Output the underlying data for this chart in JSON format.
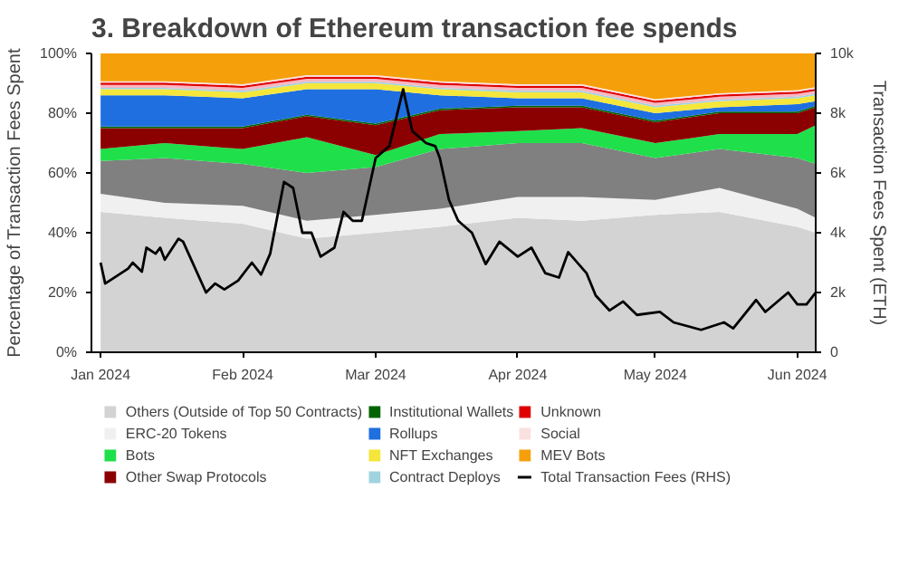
{
  "chart_data": {
    "type": "area",
    "stacked": true,
    "title": "3. Breakdown of Ethereum transaction fee spends",
    "ylabel": "Percentage of Transaction Fees Spent",
    "y2label": "Transaction Fees Spent (ETH)",
    "legend": "bottom",
    "x": [
      "2024-01-01",
      "2024-01-15",
      "2024-02-01",
      "2024-02-15",
      "2024-03-01",
      "2024-03-15",
      "2024-04-01",
      "2024-04-15",
      "2024-05-01",
      "2024-05-15",
      "2024-06-01",
      "2024-06-05"
    ],
    "xlim": [
      "2023-12-30",
      "2024-06-05"
    ],
    "xticks": [
      {
        "value": "2024-01-01",
        "label": "Jan 2024"
      },
      {
        "value": "2024-02-01",
        "label": "Feb 2024"
      },
      {
        "value": "2024-03-01",
        "label": "Mar 2024"
      },
      {
        "value": "2024-04-01",
        "label": "Apr 2024"
      },
      {
        "value": "2024-05-01",
        "label": "May 2024"
      },
      {
        "value": "2024-06-01",
        "label": "Jun 2024"
      }
    ],
    "ylim": [
      0,
      100
    ],
    "yticks": [
      {
        "value": 0,
        "label": "0%"
      },
      {
        "value": 20,
        "label": "20%"
      },
      {
        "value": 40,
        "label": "40%"
      },
      {
        "value": 60,
        "label": "60%"
      },
      {
        "value": 80,
        "label": "80%"
      },
      {
        "value": 100,
        "label": "100%"
      }
    ],
    "y2lim": [
      0,
      10000
    ],
    "y2ticks": [
      0,
      {
        "value": 2000,
        "label": "2k"
      },
      {
        "value": 4000,
        "label": "4k"
      },
      {
        "value": 6000,
        "label": "6k"
      },
      {
        "value": 8000,
        "label": "8k"
      },
      {
        "value": 10000,
        "label": "10k"
      }
    ],
    "series": [
      {
        "name": "Others (Outside of Top 50 Contracts)",
        "color": "#d3d3d3",
        "values": [
          47,
          45,
          43,
          38,
          40,
          42,
          45,
          44,
          46,
          47,
          42,
          40
        ]
      },
      {
        "name": "ERC-20 Tokens",
        "color": "#f0f0f0",
        "values": [
          6,
          5,
          6,
          6,
          6,
          6,
          7,
          8,
          5,
          8,
          6,
          5
        ]
      },
      {
        "color": "#808080",
        "values": [
          11,
          15,
          14,
          16,
          16,
          20,
          18,
          18,
          14,
          13,
          17,
          18
        ]
      },
      {
        "name": "Bots",
        "color": "#1fe04a",
        "values": [
          4,
          5,
          5,
          12,
          4,
          5,
          4,
          5,
          5,
          5,
          8,
          13
        ]
      },
      {
        "name": "Other Swap Protocols",
        "color": "#8b0000",
        "values": [
          7,
          5,
          7,
          7,
          10,
          8,
          8,
          7,
          7,
          7,
          7,
          6
        ]
      },
      {
        "name": "Institutional Wallets",
        "color": "#006400",
        "values": [
          0.5,
          0.5,
          0.5,
          0.5,
          0.5,
          0.5,
          0.5,
          0.5,
          0.5,
          0.5,
          0.5,
          0.5
        ]
      },
      {
        "name": "Rollups",
        "color": "#1f6fe0",
        "values": [
          10.5,
          10.5,
          9.5,
          8.5,
          11.5,
          4.5,
          2.5,
          2.5,
          2.5,
          1.5,
          2.5,
          1.5
        ]
      },
      {
        "name": "NFT Exchanges",
        "color": "#f5e63b",
        "values": [
          2,
          2,
          2,
          2,
          2,
          2,
          2,
          2,
          2,
          2,
          2,
          2
        ]
      },
      {
        "name": "Contract Deploys",
        "color": "#9fd3e0",
        "values": [
          0.5,
          0.5,
          0.5,
          0.5,
          0.5,
          0.5,
          0.5,
          0.5,
          0.5,
          0.5,
          0.5,
          0.5
        ]
      },
      {
        "color": "#f7b6c2",
        "values": [
          1,
          1,
          1,
          1,
          1,
          1,
          1,
          1,
          1,
          1,
          1,
          1
        ]
      },
      {
        "name": "Unknown",
        "color": "#e00000",
        "values": [
          0.7,
          0.7,
          0.7,
          0.7,
          0.7,
          0.7,
          0.7,
          0.7,
          0.7,
          0.7,
          0.7,
          0.7
        ]
      },
      {
        "name": "Social",
        "color": "#fbe0e0",
        "values": [
          0.5,
          0.5,
          0.5,
          0.5,
          0.5,
          0.5,
          0.5,
          0.5,
          0.5,
          0.5,
          0.5,
          0.5
        ]
      },
      {
        "name": "MEV Bots",
        "color": "#f5a00a",
        "values": [
          9.3,
          9.3,
          10.3,
          7.3,
          7.3,
          9.3,
          10.3,
          10.3,
          15.3,
          13.3,
          12.3,
          11.3
        ]
      },
      {
        "name": "Total Transaction Fees (RHS)",
        "type": "line",
        "axis": "y2",
        "color": "#000000",
        "x": [
          "2024-01-01",
          "2024-01-02",
          "2024-01-07",
          "2024-01-08",
          "2024-01-10",
          "2024-01-11",
          "2024-01-13",
          "2024-01-14",
          "2024-01-15",
          "2024-01-18",
          "2024-01-19",
          "2024-01-24",
          "2024-01-26",
          "2024-01-28",
          "2024-01-31",
          "2024-02-03",
          "2024-02-05",
          "2024-02-07",
          "2024-02-10",
          "2024-02-12",
          "2024-02-14",
          "2024-02-16",
          "2024-02-18",
          "2024-02-21",
          "2024-02-23",
          "2024-02-25",
          "2024-02-27",
          "2024-03-01",
          "2024-03-04",
          "2024-03-07",
          "2024-03-09",
          "2024-03-12",
          "2024-03-14",
          "2024-03-15",
          "2024-03-17",
          "2024-03-19",
          "2024-03-22",
          "2024-03-25",
          "2024-03-28",
          "2024-04-01",
          "2024-04-04",
          "2024-04-07",
          "2024-04-10",
          "2024-04-12",
          "2024-04-16",
          "2024-04-18",
          "2024-04-21",
          "2024-04-24",
          "2024-04-27",
          "2024-05-02",
          "2024-05-05",
          "2024-05-11",
          "2024-05-16",
          "2024-05-18",
          "2024-05-23",
          "2024-05-25",
          "2024-05-30",
          "2024-06-01",
          "2024-06-03",
          "2024-06-05"
        ],
        "values": [
          3000,
          2300,
          2800,
          3000,
          2700,
          3500,
          3300,
          3500,
          3100,
          3800,
          3700,
          2000,
          2300,
          2100,
          2400,
          3000,
          2600,
          3300,
          5700,
          5500,
          4000,
          4000,
          3200,
          3500,
          4700,
          4400,
          4400,
          6500,
          6900,
          8800,
          7400,
          7000,
          6900,
          6500,
          5100,
          4400,
          4000,
          2950,
          3700,
          3200,
          3500,
          2650,
          2500,
          3350,
          2650,
          1900,
          1400,
          1700,
          1250,
          1350,
          1000,
          750,
          1000,
          800,
          1750,
          1350,
          2000,
          1600,
          1600,
          2000
        ]
      }
    ]
  }
}
